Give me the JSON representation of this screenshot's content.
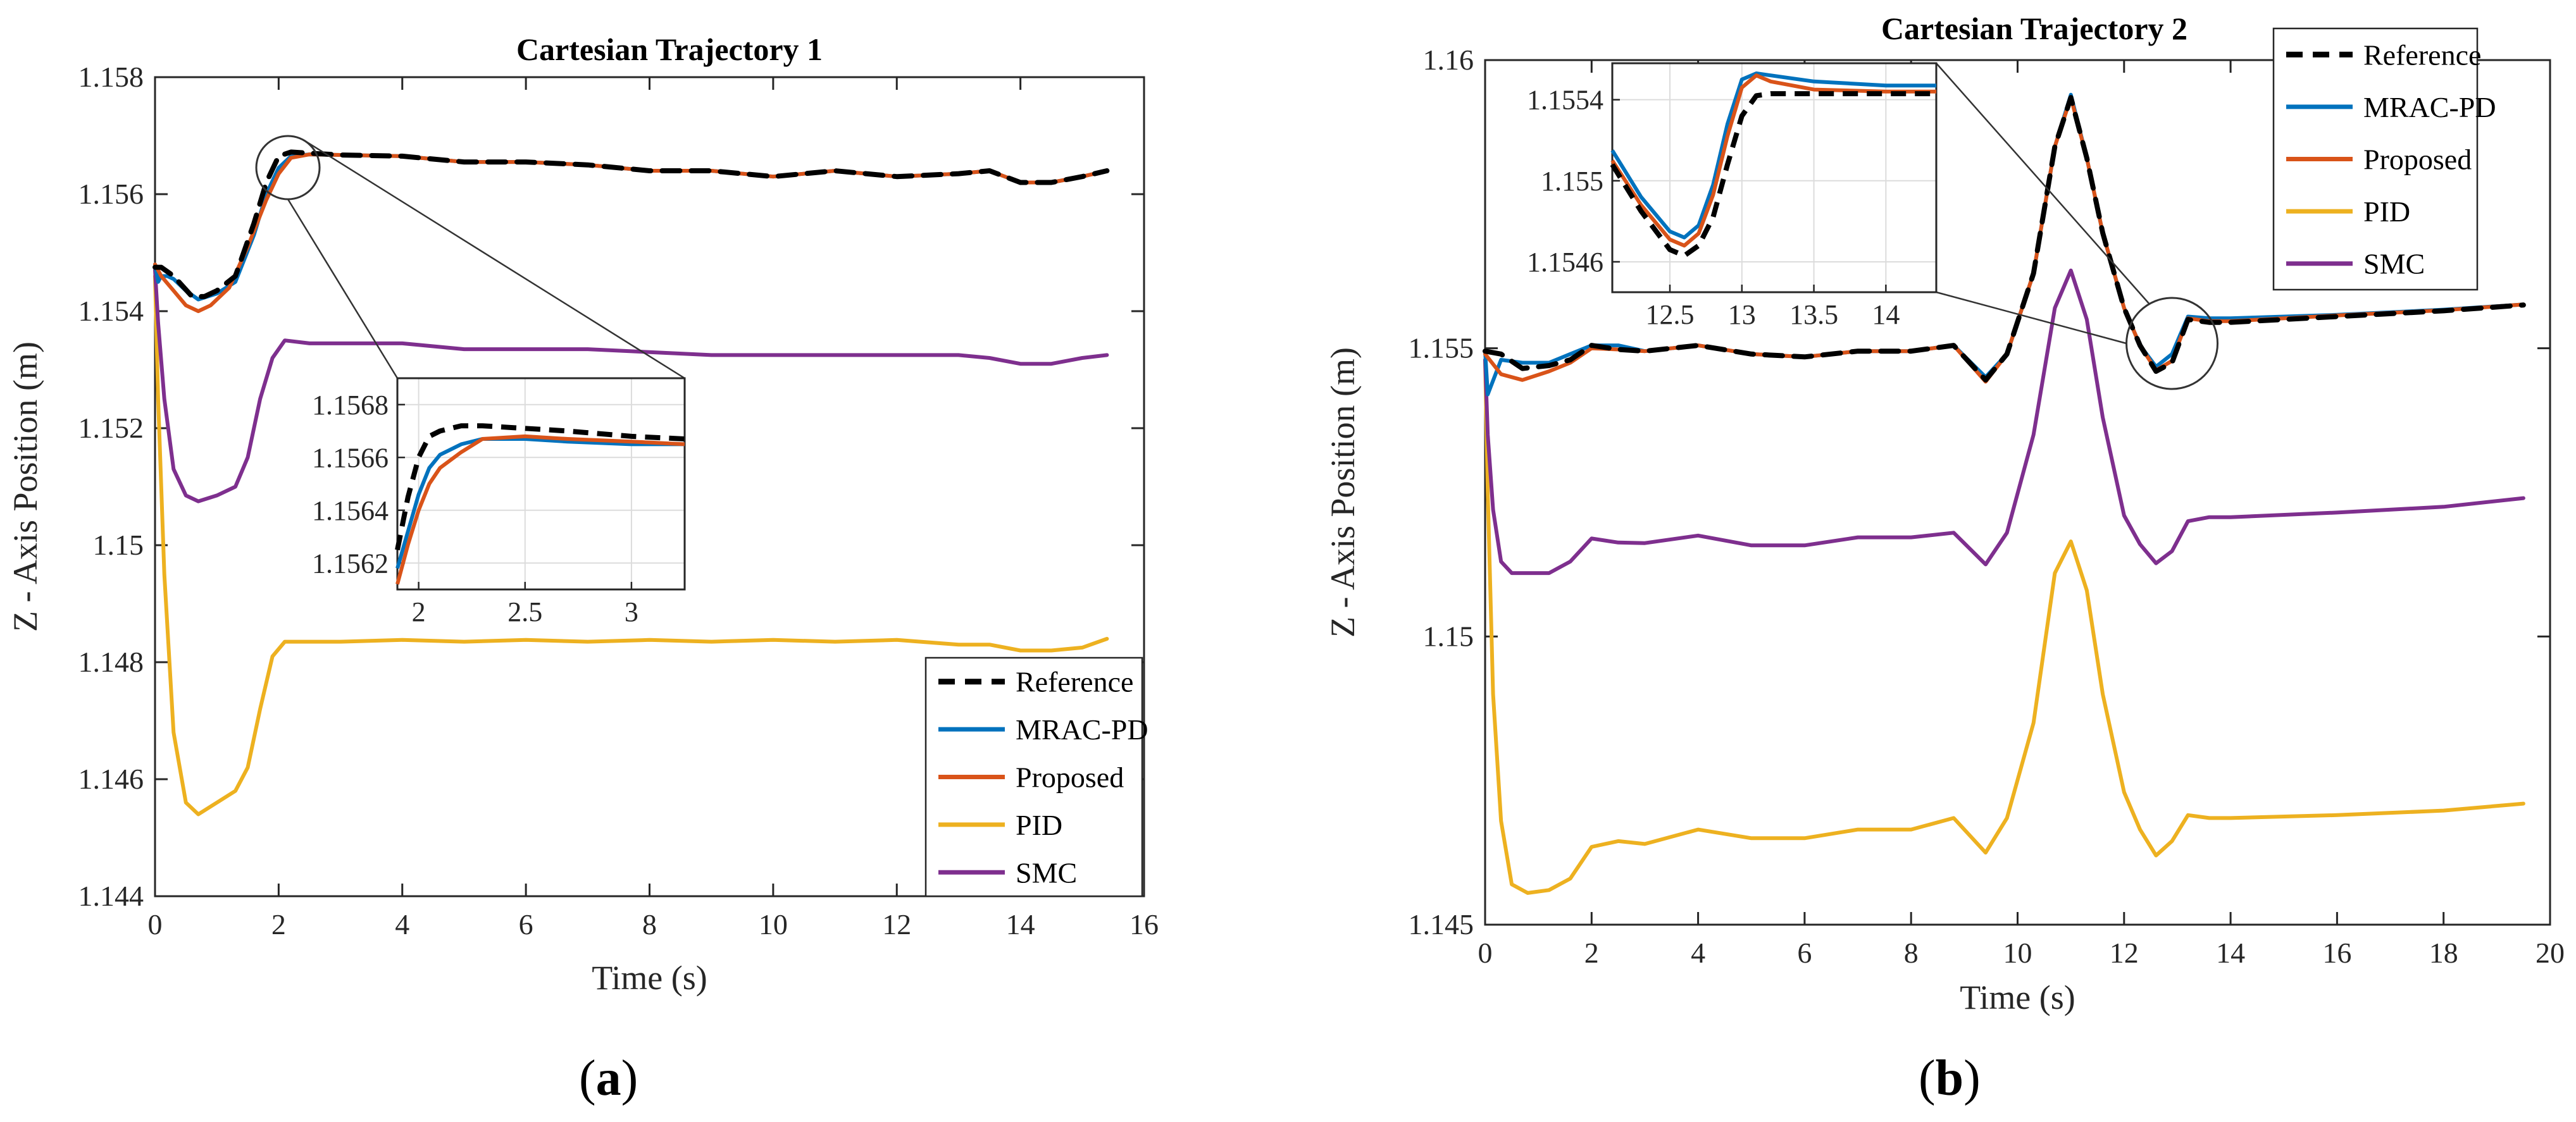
{
  "panels": [
    {
      "label_open": "(",
      "label_letter": "a",
      "label_close": ")"
    },
    {
      "label_open": "(",
      "label_letter": "b",
      "label_close": ")"
    }
  ],
  "colors": {
    "Reference": "#000000",
    "MRAC-PD": "#0072BD",
    "Proposed": "#D95319",
    "PID": "#EDB120",
    "SMC": "#7E2F8E"
  },
  "chart_data": [
    {
      "type": "line",
      "title": "Cartesian Trajectory 1",
      "xlabel": "Time (s)",
      "ylabel": "Z - Axis Position (m)",
      "xlim": [
        0,
        16
      ],
      "ylim": [
        1.144,
        1.158
      ],
      "xticks": [
        0,
        2,
        4,
        6,
        8,
        10,
        12,
        14,
        16
      ],
      "xtick_labels": [
        "0",
        "2",
        "4",
        "6",
        "8",
        "10",
        "12",
        "14",
        "16"
      ],
      "yticks": [
        1.144,
        1.146,
        1.148,
        1.15,
        1.152,
        1.154,
        1.156,
        1.158
      ],
      "ytick_labels": [
        "1.144",
        "1.146",
        "1.148",
        "1.15",
        "1.152",
        "1.154",
        "1.156",
        "1.158"
      ],
      "grid": false,
      "legend_position": "bottom-right",
      "legend": [
        "Reference",
        "MRAC-PD",
        "Proposed",
        "PID",
        "SMC"
      ],
      "series": [
        {
          "name": "Reference",
          "style": "dashed",
          "x": [
            0,
            0.1,
            0.3,
            0.6,
            0.8,
            1.0,
            1.3,
            1.6,
            1.8,
            2.0,
            2.2,
            2.5,
            3,
            4,
            5,
            6,
            7,
            8,
            9,
            10,
            11,
            12,
            13,
            13.5,
            14,
            14.5,
            15,
            15.4
          ],
          "y": [
            1.15475,
            1.15475,
            1.1546,
            1.15425,
            1.15425,
            1.15435,
            1.1546,
            1.1555,
            1.1562,
            1.15665,
            1.15672,
            1.1567,
            1.15667,
            1.15665,
            1.15655,
            1.15655,
            1.1565,
            1.1564,
            1.1564,
            1.1563,
            1.1564,
            1.1563,
            1.15635,
            1.1564,
            1.1562,
            1.1562,
            1.1563,
            1.1564
          ]
        },
        {
          "name": "MRAC-PD",
          "x": [
            0,
            0.05,
            0.1,
            0.2,
            0.3,
            0.5,
            0.7,
            1.0,
            1.3,
            1.6,
            1.8,
            2.0,
            2.2,
            2.5,
            3,
            4,
            5,
            6,
            7,
            8,
            9,
            10,
            11,
            12,
            13,
            13.5,
            14,
            14.5,
            15,
            15.4
          ],
          "y": [
            1.1548,
            1.1545,
            1.1546,
            1.1546,
            1.15455,
            1.15435,
            1.1542,
            1.1543,
            1.1545,
            1.1553,
            1.156,
            1.15645,
            1.15665,
            1.15668,
            1.15667,
            1.15665,
            1.15655,
            1.15655,
            1.1565,
            1.1564,
            1.1564,
            1.1563,
            1.1564,
            1.1563,
            1.15635,
            1.1564,
            1.1562,
            1.1562,
            1.1563,
            1.1564
          ]
        },
        {
          "name": "Proposed",
          "x": [
            0,
            0.1,
            0.3,
            0.5,
            0.7,
            0.9,
            1.2,
            1.5,
            1.8,
            2.0,
            2.2,
            2.5,
            3,
            4,
            5,
            6,
            7,
            8,
            9,
            10,
            11,
            12,
            13,
            13.5,
            14,
            14.5,
            15,
            15.4
          ],
          "y": [
            1.1548,
            1.1546,
            1.15435,
            1.1541,
            1.154,
            1.1541,
            1.1544,
            1.1551,
            1.1559,
            1.15635,
            1.15662,
            1.15668,
            1.15667,
            1.15665,
            1.15655,
            1.15655,
            1.1565,
            1.1564,
            1.1564,
            1.1563,
            1.1564,
            1.1563,
            1.15635,
            1.1564,
            1.1562,
            1.1562,
            1.1563,
            1.1564
          ]
        },
        {
          "name": "PID",
          "x": [
            0,
            0.05,
            0.15,
            0.3,
            0.5,
            0.7,
            1.0,
            1.3,
            1.5,
            1.7,
            1.9,
            2.1,
            2.5,
            3,
            4,
            5,
            6,
            7,
            8,
            9,
            10,
            11,
            12,
            13,
            13.5,
            14,
            14.5,
            15,
            15.4
          ],
          "y": [
            1.1546,
            1.1525,
            1.1495,
            1.1468,
            1.1456,
            1.1454,
            1.1456,
            1.1458,
            1.1462,
            1.1472,
            1.1481,
            1.14835,
            1.14835,
            1.14835,
            1.14838,
            1.14835,
            1.14838,
            1.14835,
            1.14838,
            1.14835,
            1.14838,
            1.14835,
            1.14838,
            1.1483,
            1.1483,
            1.1482,
            1.1482,
            1.14825,
            1.1484
          ]
        },
        {
          "name": "SMC",
          "x": [
            0,
            0.05,
            0.15,
            0.3,
            0.5,
            0.7,
            1.0,
            1.3,
            1.5,
            1.7,
            1.9,
            2.1,
            2.5,
            3,
            4,
            5,
            6,
            7,
            8,
            9,
            10,
            11,
            12,
            13,
            13.5,
            14,
            14.5,
            15,
            15.4
          ],
          "y": [
            1.1547,
            1.1538,
            1.1525,
            1.1513,
            1.15085,
            1.15075,
            1.15085,
            1.151,
            1.1515,
            1.1525,
            1.1532,
            1.1535,
            1.15345,
            1.15345,
            1.15345,
            1.15335,
            1.15335,
            1.15335,
            1.1533,
            1.15325,
            1.15325,
            1.15325,
            1.15325,
            1.15325,
            1.1532,
            1.1531,
            1.1531,
            1.1532,
            1.15325
          ]
        }
      ],
      "inset": {
        "xlim": [
          1.9,
          3.25
        ],
        "ylim": [
          1.1561,
          1.1569
        ],
        "xticks": [
          2,
          2.5,
          3
        ],
        "xtick_labels": [
          "2",
          "2.5",
          "3"
        ],
        "yticks": [
          1.1562,
          1.1564,
          1.1566,
          1.1568
        ],
        "ytick_labels": [
          "1.1562",
          "1.1564",
          "1.1566",
          "1.1568"
        ],
        "zoom_center": [
          2.15,
          1.15665
        ],
        "series": [
          {
            "name": "Reference",
            "x": [
              1.9,
              1.95,
              2.0,
              2.05,
              2.1,
              2.2,
              2.3,
              2.5,
              2.7,
              3.0,
              3.25
            ],
            "y": [
              1.15625,
              1.15645,
              1.1566,
              1.15668,
              1.1567,
              1.15672,
              1.15672,
              1.15671,
              1.1567,
              1.15668,
              1.15667
            ]
          },
          {
            "name": "MRAC-PD",
            "x": [
              1.9,
              1.95,
              2.0,
              2.05,
              2.1,
              2.2,
              2.3,
              2.5,
              2.7,
              3.0,
              3.25
            ],
            "y": [
              1.15618,
              1.15632,
              1.15646,
              1.15656,
              1.15661,
              1.15665,
              1.15667,
              1.15667,
              1.15666,
              1.15665,
              1.15665
            ]
          },
          {
            "name": "Proposed",
            "x": [
              1.9,
              1.95,
              2.0,
              2.05,
              2.1,
              2.2,
              2.3,
              2.5,
              2.7,
              3.0,
              3.25
            ],
            "y": [
              1.15612,
              1.15627,
              1.1564,
              1.1565,
              1.15656,
              1.15662,
              1.15667,
              1.15668,
              1.15667,
              1.15666,
              1.15665
            ]
          }
        ]
      }
    },
    {
      "type": "line",
      "title": "Cartesian Trajectory 2",
      "xlabel": "Time (s)",
      "ylabel": "Z - Axis Position (m)",
      "xlim": [
        0,
        20
      ],
      "ylim": [
        1.145,
        1.16
      ],
      "xticks": [
        0,
        2,
        4,
        6,
        8,
        10,
        12,
        14,
        16,
        18,
        20
      ],
      "xtick_labels": [
        "0",
        "2",
        "4",
        "6",
        "8",
        "10",
        "12",
        "14",
        "16",
        "18",
        "20"
      ],
      "yticks": [
        1.145,
        1.15,
        1.155,
        1.16
      ],
      "ytick_labels": [
        "1.145",
        "1.15",
        "1.155",
        "1.16"
      ],
      "grid": false,
      "legend_position": "top-right",
      "legend": [
        "Reference",
        "MRAC-PD",
        "Proposed",
        "PID",
        "SMC"
      ],
      "series": [
        {
          "name": "Reference",
          "style": "dashed",
          "x": [
            0,
            0.3,
            0.7,
            1.2,
            1.6,
            2.0,
            2.5,
            3,
            4,
            5,
            6,
            7,
            8,
            8.8,
            9.4,
            9.8,
            10.3,
            10.7,
            11.0,
            11.3,
            11.6,
            12.0,
            12.3,
            12.6,
            12.9,
            13.2,
            13.6,
            14,
            16,
            18,
            19.5
          ],
          "y": [
            1.15495,
            1.1549,
            1.15465,
            1.1547,
            1.1548,
            1.15505,
            1.15498,
            1.15495,
            1.15505,
            1.1549,
            1.15485,
            1.15495,
            1.15495,
            1.15505,
            1.15445,
            1.1549,
            1.1563,
            1.1585,
            1.15935,
            1.1583,
            1.157,
            1.1557,
            1.15505,
            1.1546,
            1.15475,
            1.1555,
            1.15545,
            1.15545,
            1.15555,
            1.15565,
            1.15575
          ]
        },
        {
          "name": "MRAC-PD",
          "x": [
            0,
            0.05,
            0.3,
            0.7,
            1.2,
            1.6,
            2.0,
            2.5,
            3,
            4,
            5,
            6,
            7,
            8,
            8.8,
            9.4,
            9.8,
            10.3,
            10.7,
            11.0,
            11.3,
            11.6,
            12.0,
            12.3,
            12.6,
            12.9,
            13.2,
            13.6,
            14,
            16,
            18,
            19.5
          ],
          "y": [
            1.15495,
            1.1542,
            1.1548,
            1.15475,
            1.15475,
            1.1549,
            1.15505,
            1.15505,
            1.15495,
            1.15505,
            1.1549,
            1.15485,
            1.15495,
            1.15495,
            1.15505,
            1.1545,
            1.1549,
            1.1563,
            1.1585,
            1.1594,
            1.1583,
            1.157,
            1.1557,
            1.15505,
            1.15468,
            1.1549,
            1.15555,
            1.15552,
            1.15552,
            1.15558,
            1.15567,
            1.15576
          ]
        },
        {
          "name": "Proposed",
          "x": [
            0,
            0.3,
            0.7,
            1.2,
            1.6,
            2.0,
            2.5,
            3,
            4,
            5,
            6,
            7,
            8,
            8.8,
            9.4,
            9.8,
            10.3,
            10.7,
            11.0,
            11.3,
            11.6,
            12.0,
            12.3,
            12.6,
            12.9,
            13.2,
            13.6,
            14,
            16,
            18,
            19.5
          ],
          "y": [
            1.1549,
            1.15455,
            1.15445,
            1.1546,
            1.15475,
            1.155,
            1.15498,
            1.15495,
            1.15505,
            1.1549,
            1.15485,
            1.15495,
            1.15495,
            1.15505,
            1.15442,
            1.1549,
            1.1563,
            1.1585,
            1.15935,
            1.1583,
            1.157,
            1.1557,
            1.15505,
            1.15462,
            1.15478,
            1.15552,
            1.15547,
            1.15547,
            1.15557,
            1.15566,
            1.15576
          ]
        },
        {
          "name": "PID",
          "x": [
            0,
            0.05,
            0.15,
            0.3,
            0.5,
            0.8,
            1.2,
            1.6,
            2.0,
            2.5,
            3,
            4,
            5,
            6,
            7,
            8,
            8.8,
            9.4,
            9.8,
            10.3,
            10.7,
            11.0,
            11.3,
            11.6,
            12.0,
            12.3,
            12.6,
            12.9,
            13.2,
            13.6,
            14,
            16,
            18,
            19.5
          ],
          "y": [
            1.1548,
            1.1525,
            1.149,
            1.1468,
            1.1457,
            1.14555,
            1.1456,
            1.1458,
            1.14635,
            1.14645,
            1.1464,
            1.14665,
            1.1465,
            1.1465,
            1.14665,
            1.14665,
            1.14685,
            1.14625,
            1.14685,
            1.1485,
            1.1511,
            1.15165,
            1.1508,
            1.149,
            1.1473,
            1.14665,
            1.1462,
            1.14645,
            1.1469,
            1.14685,
            1.14685,
            1.1469,
            1.14698,
            1.1471
          ]
        },
        {
          "name": "SMC",
          "x": [
            0,
            0.05,
            0.15,
            0.3,
            0.5,
            0.8,
            1.2,
            1.6,
            2.0,
            2.5,
            3,
            4,
            5,
            6,
            7,
            8,
            8.8,
            9.4,
            9.8,
            10.3,
            10.7,
            11.0,
            11.3,
            11.6,
            12.0,
            12.3,
            12.6,
            12.9,
            13.2,
            13.6,
            14,
            16,
            18,
            19.5
          ],
          "y": [
            1.1548,
            1.1535,
            1.1522,
            1.1513,
            1.1511,
            1.1511,
            1.1511,
            1.1513,
            1.1517,
            1.15163,
            1.15162,
            1.15175,
            1.15158,
            1.15158,
            1.15172,
            1.15172,
            1.1518,
            1.15125,
            1.1518,
            1.1535,
            1.1557,
            1.15635,
            1.1555,
            1.1538,
            1.1521,
            1.1516,
            1.15127,
            1.15148,
            1.152,
            1.15207,
            1.15207,
            1.15215,
            1.15225,
            1.1524
          ]
        }
      ],
      "inset": {
        "xlim": [
          12.1,
          14.35
        ],
        "ylim": [
          1.15445,
          1.15558
        ],
        "xticks": [
          12.5,
          13,
          13.5,
          14
        ],
        "xtick_labels": [
          "12.5",
          "13",
          "13.5",
          "14"
        ],
        "yticks": [
          1.1546,
          1.155,
          1.1554
        ],
        "ytick_labels": [
          "1.1546",
          "1.155",
          "1.1554"
        ],
        "zoom_center": [
          12.9,
          1.15505
        ],
        "series": [
          {
            "name": "Reference",
            "x": [
              12.1,
              12.3,
              12.5,
              12.6,
              12.7,
              12.8,
              12.9,
              13.0,
              13.1,
              13.2,
              13.5,
              14.0,
              14.35
            ],
            "y": [
              1.15508,
              1.15485,
              1.15466,
              1.15463,
              1.15468,
              1.15482,
              1.15508,
              1.15532,
              1.15542,
              1.15543,
              1.15543,
              1.15543,
              1.15543
            ]
          },
          {
            "name": "MRAC-PD",
            "x": [
              12.1,
              12.3,
              12.5,
              12.6,
              12.7,
              12.8,
              12.9,
              13.0,
              13.1,
              13.2,
              13.5,
              14.0,
              14.35
            ],
            "y": [
              1.15515,
              1.15492,
              1.15475,
              1.15472,
              1.15478,
              1.15498,
              1.15528,
              1.1555,
              1.15553,
              1.15552,
              1.15549,
              1.15547,
              1.15547
            ]
          },
          {
            "name": "Proposed",
            "x": [
              12.1,
              12.3,
              12.5,
              12.6,
              12.7,
              12.8,
              12.9,
              13.0,
              13.1,
              13.2,
              13.5,
              14.0,
              14.35
            ],
            "y": [
              1.1551,
              1.15488,
              1.15471,
              1.15468,
              1.15474,
              1.15493,
              1.15522,
              1.15546,
              1.15552,
              1.15549,
              1.15545,
              1.15544,
              1.15544
            ]
          }
        ]
      }
    }
  ]
}
